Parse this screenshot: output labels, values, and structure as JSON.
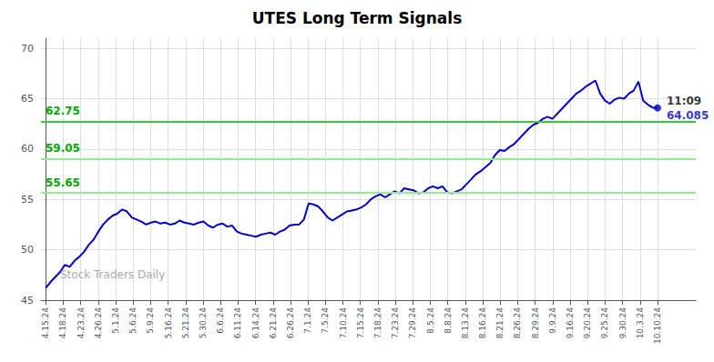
{
  "chart_data": {
    "type": "line",
    "title": "UTES Long Term Signals",
    "color": "#0000cc",
    "grid": true,
    "xlim": [
      -1,
      136
    ],
    "xticks": [
      {
        "value": 0,
        "label": "4.15.24"
      },
      {
        "value": 3.6571428571,
        "label": "4.18.24"
      },
      {
        "value": 7.3142857143,
        "label": "4.23.24"
      },
      {
        "value": 10.9714285714,
        "label": "4.26.24"
      },
      {
        "value": 14.6285714286,
        "label": "5.1.24"
      },
      {
        "value": 18.2857142857,
        "label": "5.6.24"
      },
      {
        "value": 21.9428571429,
        "label": "5.9.24"
      },
      {
        "value": 25.6,
        "label": "5.16.24"
      },
      {
        "value": 29.2571428571,
        "label": "5.21.24"
      },
      {
        "value": 32.9142857143,
        "label": "5.30.24"
      },
      {
        "value": 36.5714285714,
        "label": "6.6.24"
      },
      {
        "value": 40.2285714286,
        "label": "6.11.24"
      },
      {
        "value": 43.8857142857,
        "label": "6.14.24"
      },
      {
        "value": 47.5428571429,
        "label": "6.21.24"
      },
      {
        "value": 51.2,
        "label": "6.26.24"
      },
      {
        "value": 54.8571428571,
        "label": "7.1.24"
      },
      {
        "value": 58.5142857143,
        "label": "7.5.24"
      },
      {
        "value": 62.1714285714,
        "label": "7.10.24"
      },
      {
        "value": 65.8285714286,
        "label": "7.15.24"
      },
      {
        "value": 69.4857142857,
        "label": "7.18.24"
      },
      {
        "value": 73.1428571429,
        "label": "7.23.24"
      },
      {
        "value": 76.8,
        "label": "7.29.24"
      },
      {
        "value": 80.4571428571,
        "label": "8.5.24"
      },
      {
        "value": 84.1142857143,
        "label": "8.8.24"
      },
      {
        "value": 87.7714285714,
        "label": "8.13.24"
      },
      {
        "value": 91.4285714286,
        "label": "8.16.24"
      },
      {
        "value": 95.0857142857,
        "label": "8.21.24"
      },
      {
        "value": 98.7428571429,
        "label": "8.26.24"
      },
      {
        "value": 102.4,
        "label": "8.29.24"
      },
      {
        "value": 106.0571428571,
        "label": "9.9.24"
      },
      {
        "value": 109.7142857143,
        "label": "9.16.24"
      },
      {
        "value": 113.3714285714,
        "label": "9.20.24"
      },
      {
        "value": 117.0285714286,
        "label": "9.25.24"
      },
      {
        "value": 120.6857142857,
        "label": "9.30.24"
      },
      {
        "value": 124.3428571429,
        "label": "10.3.24"
      },
      {
        "value": 128,
        "label": "10.10.24"
      }
    ],
    "ylim": [
      45,
      71
    ],
    "yticks": [
      45,
      50,
      55,
      60,
      65,
      70
    ],
    "x": [
      0,
      1,
      2,
      3,
      4,
      5,
      6,
      7,
      8,
      9,
      10,
      11,
      12,
      13,
      14,
      15,
      16,
      17,
      18,
      19,
      20,
      21,
      22,
      23,
      24,
      25,
      26,
      27,
      28,
      29,
      30,
      31,
      32,
      33,
      34,
      35,
      36,
      37,
      38,
      39,
      40,
      41,
      42,
      43,
      44,
      45,
      46,
      47,
      48,
      49,
      50,
      51,
      52,
      53,
      54,
      55,
      56,
      57,
      58,
      59,
      60,
      61,
      62,
      63,
      64,
      65,
      66,
      67,
      68,
      69,
      70,
      71,
      72,
      73,
      74,
      75,
      76,
      77,
      78,
      79,
      80,
      81,
      82,
      83,
      84,
      85,
      86,
      87,
      88,
      89,
      90,
      91,
      92,
      93,
      94,
      95,
      96,
      97,
      98,
      99,
      100,
      101,
      102,
      103,
      104,
      105,
      106,
      107,
      108,
      109,
      110,
      111,
      112,
      113,
      114,
      115,
      116,
      117,
      118,
      119,
      120,
      121,
      122,
      123,
      124,
      125,
      126,
      127,
      128
    ],
    "values": [
      46.2,
      46.8,
      47.3,
      47.8,
      48.5,
      48.3,
      48.9,
      49.3,
      49.8,
      50.5,
      51.0,
      51.8,
      52.5,
      53.0,
      53.4,
      53.6,
      54.0,
      53.8,
      53.2,
      53.0,
      52.8,
      52.5,
      52.7,
      52.8,
      52.6,
      52.7,
      52.5,
      52.6,
      52.9,
      52.7,
      52.6,
      52.5,
      52.7,
      52.8,
      52.4,
      52.2,
      52.5,
      52.6,
      52.3,
      52.4,
      51.8,
      51.6,
      51.5,
      51.4,
      51.3,
      51.5,
      51.6,
      51.7,
      51.5,
      51.8,
      52.0,
      52.4,
      52.5,
      52.5,
      53.0,
      54.6,
      54.5,
      54.3,
      53.8,
      53.2,
      52.9,
      53.2,
      53.5,
      53.8,
      53.9,
      54.0,
      54.2,
      54.5,
      55.0,
      55.3,
      55.5,
      55.2,
      55.5,
      55.8,
      55.6,
      56.1,
      56.0,
      55.9,
      55.6,
      55.7,
      56.1,
      56.3,
      56.1,
      56.3,
      55.7,
      55.6,
      55.8,
      56.0,
      56.5,
      57.0,
      57.5,
      57.8,
      58.2,
      58.6,
      59.4,
      59.9,
      59.8,
      60.2,
      60.5,
      61.0,
      61.5,
      62.0,
      62.4,
      62.6,
      63.0,
      63.2,
      63.0,
      63.5,
      64.0,
      64.5,
      65.0,
      65.5,
      65.8,
      66.2,
      66.5,
      66.8,
      65.5,
      64.8,
      64.5,
      64.9,
      65.1,
      65.0,
      65.5,
      65.8,
      66.7,
      64.8,
      64.4,
      64.1,
      64.085
    ],
    "reference_lines": [
      {
        "y": 55.65,
        "color": "#90EE90",
        "label": "55.65",
        "label_color": "#00aa00"
      },
      {
        "y": 59.05,
        "color": "#90EE90",
        "label": "59.05",
        "label_color": "#00aa00"
      },
      {
        "y": 62.75,
        "color": "#32CD32",
        "label": "62.75",
        "label_color": "#00aa00"
      }
    ],
    "annotations": [
      {
        "text": "11:09",
        "color": "#000000"
      },
      {
        "text": "64.085",
        "color": "#0000cc"
      }
    ],
    "watermark": {
      "text": "Stock Traders Daily",
      "color": "#aaaaaa"
    }
  }
}
